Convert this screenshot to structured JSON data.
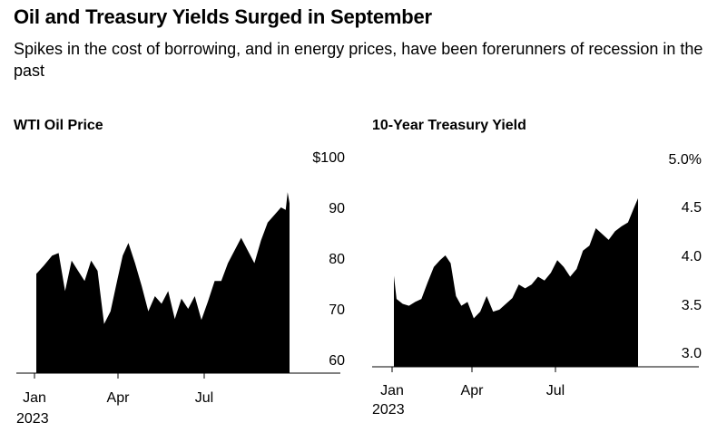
{
  "header": {
    "title": "Oil and Treasury Yields Surged in September",
    "subtitle": "Spikes in the cost of borrowing, and in energy prices, have been forerunners of recession in the past"
  },
  "colors": {
    "fill": "#000000",
    "axis": "#000000",
    "background": "#ffffff"
  },
  "chart_data": [
    {
      "type": "area",
      "title": "WTI Oil Price",
      "x_ticks": [
        "Jan",
        "Apr",
        "Jul"
      ],
      "x_tick_sub": "2023",
      "y_ticks": [
        "$100",
        "90",
        "80",
        "70",
        "60"
      ],
      "y_tick_values": [
        100,
        90,
        80,
        70,
        60
      ],
      "ylim": [
        56.8,
        100
      ],
      "x": [
        "2023-01-03",
        "2023-01-11",
        "2023-01-20",
        "2023-01-27",
        "2023-02-03",
        "2023-02-10",
        "2023-02-17",
        "2023-02-24",
        "2023-03-03",
        "2023-03-10",
        "2023-03-14",
        "2023-03-17",
        "2023-03-24",
        "2023-03-31",
        "2023-04-06",
        "2023-04-12",
        "2023-04-19",
        "2023-04-26",
        "2023-05-03",
        "2023-05-10",
        "2023-05-17",
        "2023-05-24",
        "2023-05-31",
        "2023-06-07",
        "2023-06-14",
        "2023-06-21",
        "2023-06-28",
        "2023-07-05",
        "2023-07-12",
        "2023-07-19",
        "2023-07-26",
        "2023-08-02",
        "2023-08-09",
        "2023-08-16",
        "2023-08-23",
        "2023-08-30",
        "2023-09-06",
        "2023-09-13",
        "2023-09-20",
        "2023-09-25",
        "2023-09-27",
        "2023-09-29"
      ],
      "values": [
        76.9,
        78.5,
        80.5,
        81.0,
        73.5,
        79.5,
        77.5,
        75.5,
        79.5,
        77.5,
        71.5,
        67.0,
        69.5,
        75.5,
        80.5,
        83.0,
        79.0,
        74.5,
        69.5,
        72.5,
        71.0,
        73.5,
        68.0,
        72.0,
        70.0,
        72.5,
        67.8,
        71.5,
        75.5,
        75.5,
        79.0,
        81.5,
        84.0,
        81.5,
        79.0,
        83.5,
        87.0,
        88.5,
        90.0,
        89.5,
        93.0,
        90.8
      ]
    },
    {
      "type": "area",
      "title": "10-Year Treasury Yield",
      "x_ticks": [
        "Jan",
        "Apr",
        "Jul"
      ],
      "x_tick_sub": "2023",
      "y_ticks": [
        "5.0%",
        "4.5",
        "4.0",
        "3.5",
        "3.0"
      ],
      "y_tick_values": [
        5.0,
        4.5,
        4.0,
        3.5,
        3.0
      ],
      "ylim": [
        2.85,
        5.0
      ],
      "x": [
        "2023-01-03",
        "2023-01-06",
        "2023-01-13",
        "2023-01-20",
        "2023-01-27",
        "2023-02-03",
        "2023-02-10",
        "2023-02-17",
        "2023-02-24",
        "2023-03-02",
        "2023-03-08",
        "2023-03-14",
        "2023-03-20",
        "2023-03-27",
        "2023-04-03",
        "2023-04-10",
        "2023-04-17",
        "2023-04-24",
        "2023-05-01",
        "2023-05-08",
        "2023-05-15",
        "2023-05-22",
        "2023-05-29",
        "2023-06-05",
        "2023-06-12",
        "2023-06-19",
        "2023-06-26",
        "2023-07-03",
        "2023-07-10",
        "2023-07-17",
        "2023-07-24",
        "2023-07-31",
        "2023-08-07",
        "2023-08-14",
        "2023-08-21",
        "2023-08-28",
        "2023-09-04",
        "2023-09-11",
        "2023-09-18",
        "2023-09-25",
        "2023-09-29"
      ],
      "values": [
        3.79,
        3.55,
        3.5,
        3.48,
        3.52,
        3.55,
        3.72,
        3.88,
        3.95,
        4.0,
        3.92,
        3.58,
        3.48,
        3.52,
        3.35,
        3.42,
        3.58,
        3.42,
        3.44,
        3.5,
        3.56,
        3.7,
        3.66,
        3.7,
        3.78,
        3.74,
        3.82,
        3.95,
        3.88,
        3.78,
        3.86,
        4.05,
        4.1,
        4.28,
        4.22,
        4.16,
        4.25,
        4.3,
        4.34,
        4.5,
        4.59
      ]
    }
  ]
}
